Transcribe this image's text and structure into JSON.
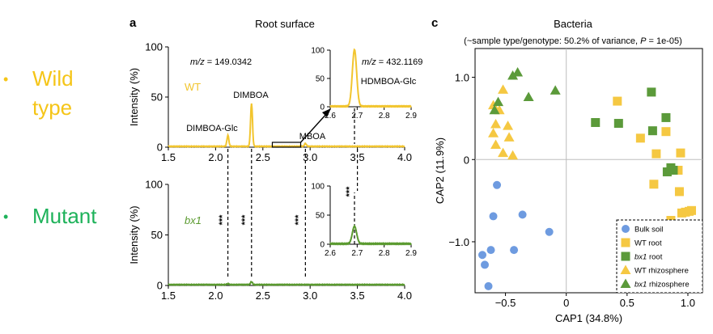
{
  "side_legend": [
    {
      "bullet": "•",
      "label_lines": [
        "Wild",
        "type"
      ],
      "color": "#F5C518"
    },
    {
      "bullet": "•",
      "label_lines": [
        "Mutant"
      ],
      "color": "#1EB25A"
    }
  ],
  "colors": {
    "wt": "#F2C52E",
    "bx1": "#5A9A2F",
    "bulk": "#6E9BE0",
    "wt_marker": "#F5C842",
    "bx1_marker": "#5B9A3A"
  },
  "chart_data": [
    {
      "type": "line",
      "panel": "a",
      "title": "Root surface",
      "series_label": "WT",
      "ylabel": "Intensity (%)",
      "xlim": [
        1.5,
        4.0
      ],
      "ylim": [
        0,
        100
      ],
      "x_ticks": [
        "1.5",
        "2.0",
        "2.5",
        "3.0",
        "3.5",
        "4.0"
      ],
      "y_ticks": [
        "0",
        "50",
        "100"
      ],
      "mz_label": "m/z = 149.0342",
      "peaks": [
        {
          "x": 2.13,
          "y": 11,
          "label": "DIMBOA-Glc"
        },
        {
          "x": 2.38,
          "y": 43,
          "label": "DIMBOA"
        },
        {
          "x": 2.95,
          "y": 3,
          "label": "MBOA"
        }
      ],
      "inset": {
        "xlim": [
          2.6,
          2.9
        ],
        "ylim": [
          0,
          100
        ],
        "x_ticks": [
          "2.6",
          "2.7",
          "2.8",
          "2.9"
        ],
        "y_ticks": [
          "0",
          "50",
          "100"
        ],
        "mz_label": "m/z = 432.1169",
        "peak": {
          "x": 2.69,
          "y": 100,
          "label": "HDMBOA-Glc"
        }
      }
    },
    {
      "type": "line",
      "panel": "a",
      "series_label": "bx1",
      "ylabel": "Intensity (%)",
      "xlim": [
        1.5,
        4.0
      ],
      "ylim": [
        0,
        100
      ],
      "x_ticks": [
        "1.5",
        "2.0",
        "2.5",
        "3.0",
        "3.5",
        "4.0"
      ],
      "y_ticks": [
        "0",
        "50",
        "100"
      ],
      "significance": "***",
      "peaks": [
        {
          "x": 2.13,
          "y": 1
        },
        {
          "x": 2.38,
          "y": 3
        }
      ],
      "inset": {
        "xlim": [
          2.6,
          2.9
        ],
        "ylim": [
          0,
          100
        ],
        "x_ticks": [
          "2.6",
          "2.7",
          "2.8",
          "2.9"
        ],
        "y_ticks": [
          "0",
          "50",
          "100"
        ],
        "significance": "***",
        "peak": {
          "x": 2.69,
          "y": 30
        }
      }
    },
    {
      "type": "scatter",
      "panel": "c",
      "title": "Bacteria",
      "subtitle_text": "(~sample type/genotype: 50.2% of variance, ",
      "subtitle_p": "P",
      "subtitle_rest": " = 1e-05)",
      "xlabel": "CAP1 (34.8%)",
      "ylabel": "CAP2 (11.9%)",
      "xlim": [
        -0.75,
        1.12
      ],
      "ylim": [
        -1.62,
        1.35
      ],
      "x_ticks": [
        {
          "v": -0.5,
          "label": "−0.5"
        },
        {
          "v": 0.0,
          "label": "0"
        },
        {
          "v": 0.5,
          "label": "0.5"
        },
        {
          "v": 1.0,
          "label": "1.0"
        }
      ],
      "y_ticks": [
        {
          "v": -1.0,
          "label": "−1.0"
        },
        {
          "v": 0.0,
          "label": "0"
        },
        {
          "v": 1.0,
          "label": "1.0"
        }
      ],
      "legend_position": "bottom-right",
      "series": [
        {
          "name": "Bulk soil",
          "marker": "circle",
          "color": "#6E9BE0",
          "points": [
            [
              -0.57,
              -0.31
            ],
            [
              -0.6,
              -0.69
            ],
            [
              -0.36,
              -0.67
            ],
            [
              -0.14,
              -0.88
            ],
            [
              -0.62,
              -1.1
            ],
            [
              -0.43,
              -1.1
            ],
            [
              -0.69,
              -1.16
            ],
            [
              -0.67,
              -1.28
            ],
            [
              -0.64,
              -1.54
            ]
          ]
        },
        {
          "name": "WT root",
          "marker": "square",
          "color": "#F5C842",
          "points": [
            [
              0.42,
              0.71
            ],
            [
              0.82,
              0.34
            ],
            [
              0.61,
              0.26
            ],
            [
              0.74,
              0.07
            ],
            [
              0.94,
              0.08
            ],
            [
              0.92,
              -0.13
            ],
            [
              0.72,
              -0.3
            ],
            [
              0.93,
              -0.39
            ],
            [
              0.95,
              -0.65
            ],
            [
              0.98,
              -0.64
            ],
            [
              1.01,
              -0.63
            ],
            [
              1.03,
              -0.62
            ],
            [
              0.86,
              -0.74
            ]
          ]
        },
        {
          "name": "bx1 root",
          "marker": "square",
          "color": "#5B9A3A",
          "points": [
            [
              0.7,
              0.82
            ],
            [
              0.82,
              0.51
            ],
            [
              0.24,
              0.45
            ],
            [
              0.43,
              0.44
            ],
            [
              0.71,
              0.35
            ],
            [
              0.86,
              -0.1
            ],
            [
              0.88,
              -0.13
            ],
            [
              0.83,
              -0.15
            ]
          ]
        },
        {
          "name": "WT rhizosphere",
          "marker": "triangle",
          "color": "#F5C842",
          "points": [
            [
              -0.52,
              0.85
            ],
            [
              -0.6,
              0.66
            ],
            [
              -0.55,
              0.6
            ],
            [
              -0.58,
              0.43
            ],
            [
              -0.48,
              0.41
            ],
            [
              -0.6,
              0.32
            ],
            [
              -0.58,
              0.18
            ],
            [
              -0.47,
              0.27
            ],
            [
              -0.52,
              0.08
            ],
            [
              -0.44,
              0.05
            ]
          ]
        },
        {
          "name": "bx1 rhizosphere",
          "marker": "triangle",
          "color": "#5B9A3A",
          "points": [
            [
              -0.4,
              1.06
            ],
            [
              -0.44,
              1.02
            ],
            [
              -0.56,
              0.7
            ],
            [
              -0.59,
              0.6
            ],
            [
              -0.31,
              0.76
            ],
            [
              -0.09,
              0.84
            ]
          ]
        }
      ]
    }
  ],
  "panel_labels": {
    "a": "a",
    "c": "c"
  }
}
